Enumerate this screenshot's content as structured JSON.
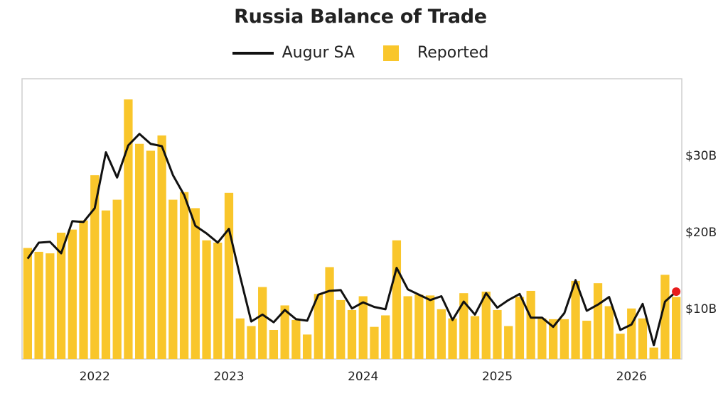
{
  "chart_data": {
    "type": "bar",
    "title": "Russia Balance of Trade",
    "legend": {
      "position": "top",
      "items": [
        {
          "label": "Augur SA",
          "kind": "line",
          "color": "#111111"
        },
        {
          "label": "Reported",
          "kind": "bar",
          "color": "#f9c62b"
        }
      ]
    },
    "x_tick_labels": [
      "2022",
      "2023",
      "2024",
      "2025",
      "2026"
    ],
    "y_tick_labels": [
      "$10B",
      "$20B",
      "$30B"
    ],
    "y_ticks": [
      10,
      20,
      30
    ],
    "ylim": [
      3.4,
      40
    ],
    "y_axis_side": "right",
    "grid": false,
    "x_start": "2021-07",
    "x_end": "2026-05",
    "x": [
      "2021-07",
      "2021-08",
      "2021-09",
      "2021-10",
      "2021-11",
      "2021-12",
      "2022-01",
      "2022-02",
      "2022-03",
      "2022-04",
      "2022-05",
      "2022-06",
      "2022-07",
      "2022-08",
      "2022-09",
      "2022-10",
      "2022-11",
      "2022-12",
      "2023-01",
      "2023-02",
      "2023-03",
      "2023-04",
      "2023-05",
      "2023-06",
      "2023-07",
      "2023-08",
      "2023-09",
      "2023-10",
      "2023-11",
      "2023-12",
      "2024-01",
      "2024-02",
      "2024-03",
      "2024-04",
      "2024-05",
      "2024-06",
      "2024-07",
      "2024-08",
      "2024-09",
      "2024-10",
      "2024-11",
      "2024-12",
      "2025-01",
      "2025-02",
      "2025-03",
      "2025-04",
      "2025-05",
      "2025-06",
      "2025-07",
      "2025-08",
      "2025-09",
      "2025-10",
      "2025-11",
      "2025-12",
      "2026-01",
      "2026-02",
      "2026-03",
      "2026-04",
      "2026-05"
    ],
    "series": [
      {
        "name": "Reported",
        "type": "bar",
        "color": "#f9c62b",
        "values": [
          17.9,
          17.4,
          17.2,
          19.9,
          20.3,
          21.5,
          27.4,
          22.8,
          24.2,
          37.3,
          31.5,
          30.6,
          32.6,
          24.2,
          25.2,
          23.1,
          18.9,
          18.6,
          25.1,
          8.7,
          7.7,
          12.8,
          7.2,
          10.4,
          8.5,
          6.6,
          11.9,
          15.4,
          11.1,
          9.8,
          11.6,
          7.6,
          9.1,
          18.9,
          11.6,
          11.8,
          11.7,
          9.9,
          8.7,
          12.0,
          9.0,
          12.2,
          9.8,
          7.7,
          11.5,
          12.3,
          8.7,
          8.6,
          8.6,
          13.6,
          8.4,
          13.3,
          10.3,
          6.7,
          10.0,
          8.7,
          4.9,
          14.4,
          11.5
        ]
      },
      {
        "name": "Augur SA",
        "type": "line",
        "color": "#111111",
        "values": [
          16.5,
          18.6,
          18.7,
          17.2,
          21.4,
          21.3,
          23.1,
          30.4,
          27.1,
          31.3,
          32.8,
          31.5,
          31.2,
          27.4,
          24.8,
          20.8,
          19.8,
          18.6,
          20.4,
          14.2,
          8.3,
          9.2,
          8.2,
          9.8,
          8.6,
          8.4,
          11.8,
          12.3,
          12.4,
          10.0,
          10.8,
          10.2,
          9.9,
          15.3,
          12.5,
          11.8,
          11.1,
          11.6,
          8.5,
          10.9,
          9.2,
          12.0,
          10.1,
          11.1,
          11.9,
          8.8,
          8.8,
          7.6,
          9.4,
          13.7,
          9.7,
          10.5,
          11.5,
          7.2,
          7.9,
          10.6,
          5.2,
          10.9,
          12.2
        ]
      }
    ],
    "latest_point_marker": {
      "series": "Augur SA",
      "color": "#e81c1c"
    }
  }
}
